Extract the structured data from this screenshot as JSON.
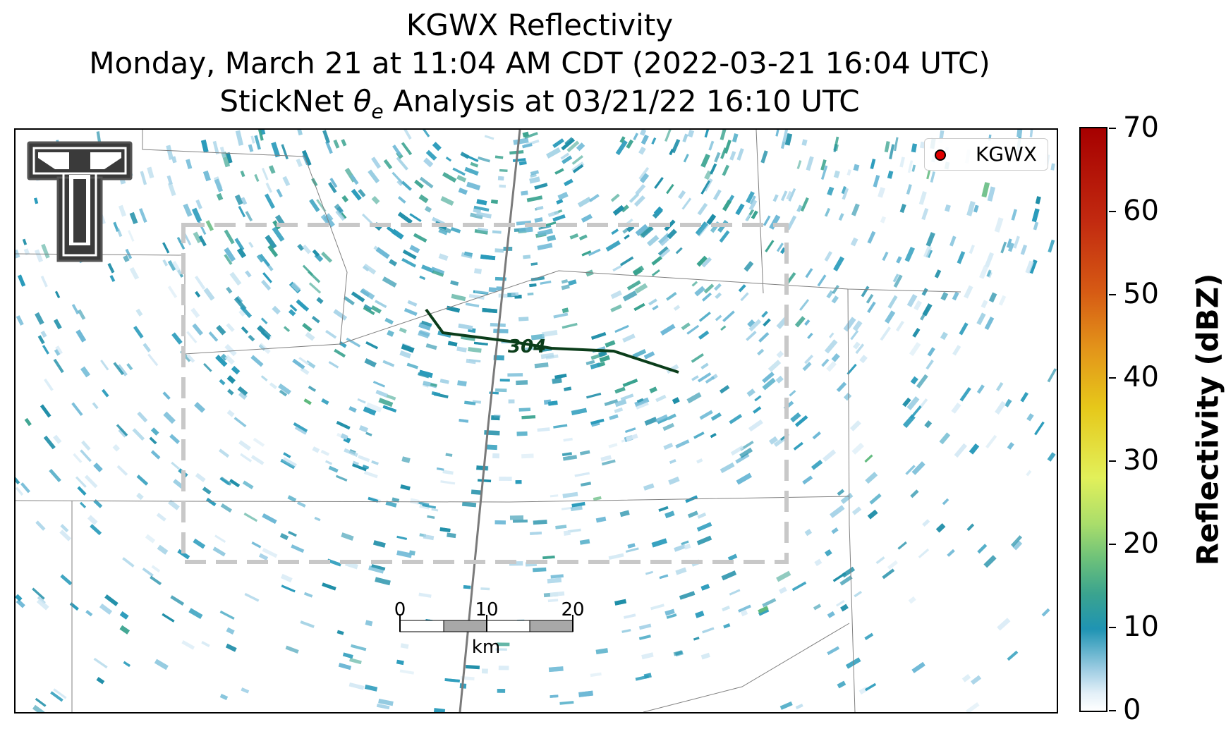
{
  "title": {
    "line1": "KGWX Reflectivity",
    "line2": "Monday, March 21 at 11:04 AM CDT (2022-03-21 16:04 UTC)",
    "line3_prefix": "StickNet ",
    "line3_theta": "θ",
    "line3_sub": "e",
    "line3_suffix": " Analysis at 03/21/22 16:10 UTC"
  },
  "legend": {
    "label": "KGWX",
    "marker_color": "#e00000"
  },
  "colorbar": {
    "label": "Reflectivity (dBZ)",
    "ticks": [
      "0",
      "10",
      "20",
      "30",
      "40",
      "50",
      "60",
      "70"
    ],
    "min": 0,
    "max": 70,
    "colors": [
      "#ffffff",
      "#1f94b3",
      "#6cc17a",
      "#e2f05a",
      "#e6c81a",
      "#e3951a",
      "#d65a14",
      "#a60000"
    ]
  },
  "contour": {
    "label": "304",
    "color": "#0b3d1a"
  },
  "scalebar": {
    "ticks": [
      "0",
      "10",
      "20"
    ],
    "unit": "km"
  },
  "analysis_box": {
    "style": "dashed",
    "color": "#c8c8c8"
  },
  "logo": {
    "icon": "texas-tech-double-t-logo"
  }
}
